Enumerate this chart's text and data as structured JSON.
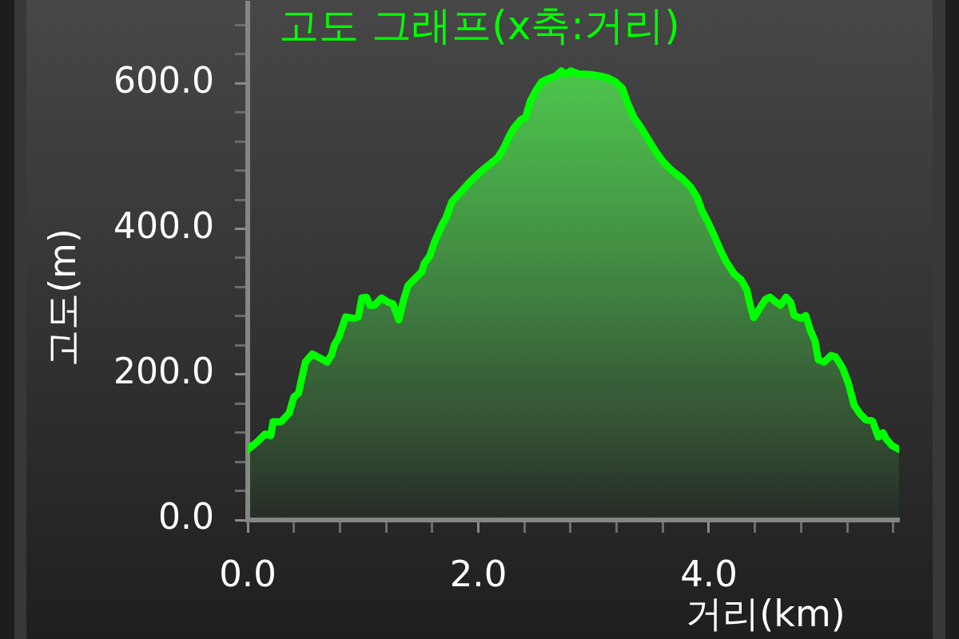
{
  "chart_data": {
    "type": "area",
    "title": "고도 그래프(x축:거리)",
    "xlabel": "거리(km)",
    "ylabel": "고도(m)",
    "color": "#00ff00",
    "marker": "none",
    "x": [
      0,
      0.08,
      0.15,
      0.2,
      0.22,
      0.29,
      0.36,
      0.4,
      0.44,
      0.5,
      0.56,
      0.62,
      0.69,
      0.73,
      0.75,
      0.79,
      0.85,
      0.92,
      0.96,
      0.99,
      1.03,
      1.06,
      1.1,
      1.16,
      1.22,
      1.26,
      1.31,
      1.35,
      1.39,
      1.44,
      1.51,
      1.53,
      1.58,
      1.62,
      1.69,
      1.72,
      1.77,
      1.85,
      1.93,
      2.03,
      2.1,
      2.17,
      2.22,
      2.27,
      2.31,
      2.37,
      2.41,
      2.45,
      2.5,
      2.55,
      2.62,
      2.67,
      2.72,
      2.76,
      2.8,
      2.87,
      2.97,
      3.06,
      3.13,
      3.19,
      3.25,
      3.3,
      3.35,
      3.4,
      3.47,
      3.54,
      3.61,
      3.68,
      3.77,
      3.84,
      3.9,
      3.94,
      3.99,
      4.04,
      4.1,
      4.15,
      4.22,
      4.28,
      4.33,
      4.36,
      4.39,
      4.43,
      4.49,
      4.53,
      4.57,
      4.62,
      4.67,
      4.71,
      4.74,
      4.8,
      4.84,
      4.88,
      4.92,
      4.95,
      5.0,
      5.06,
      5.1,
      5.16,
      5.21,
      5.26,
      5.31,
      5.36,
      5.42,
      5.47,
      5.51,
      5.54,
      5.59,
      5.65
    ],
    "values": [
      97,
      107,
      118,
      116,
      135,
      135,
      147,
      169,
      174,
      217,
      228,
      223,
      217,
      228,
      240,
      251,
      279,
      277,
      279,
      305,
      306,
      295,
      295,
      305,
      299,
      297,
      275,
      301,
      322,
      330,
      341,
      352,
      363,
      382,
      407,
      415,
      437,
      451,
      465,
      480,
      489,
      498,
      511,
      528,
      539,
      550,
      553,
      575,
      590,
      602,
      607,
      610,
      617,
      612,
      617,
      613,
      612,
      610,
      607,
      602,
      593,
      571,
      553,
      542,
      524,
      506,
      491,
      480,
      469,
      458,
      443,
      425,
      410,
      393,
      371,
      355,
      338,
      330,
      316,
      294,
      278,
      288,
      303,
      306,
      301,
      295,
      306,
      299,
      281,
      277,
      281,
      261,
      246,
      220,
      217,
      226,
      224,
      209,
      188,
      158,
      146,
      138,
      136,
      114,
      120,
      111,
      102,
      97
    ],
    "xlim": [
      0,
      5.65
    ],
    "ylim": [
      0,
      710
    ],
    "xticks": [
      {
        "value": 0,
        "label": "0.0"
      },
      {
        "value": 0.4,
        "label": null
      },
      {
        "value": 0.8,
        "label": null
      },
      {
        "value": 1.2,
        "label": null
      },
      {
        "value": 1.6,
        "label": null
      },
      {
        "value": 2,
        "label": "2.0"
      },
      {
        "value": 2.4,
        "label": null
      },
      {
        "value": 2.8,
        "label": null
      },
      {
        "value": 3.2,
        "label": null
      },
      {
        "value": 3.6,
        "label": null
      },
      {
        "value": 4,
        "label": "4.0"
      },
      {
        "value": 4.4,
        "label": null
      },
      {
        "value": 4.8,
        "label": null
      },
      {
        "value": 5.2,
        "label": null
      },
      {
        "value": 5.6,
        "label": null
      }
    ],
    "yticks": [
      {
        "value": 0,
        "label": "0.0"
      },
      {
        "value": 40,
        "label": null
      },
      {
        "value": 80,
        "label": null
      },
      {
        "value": 120,
        "label": null
      },
      {
        "value": 160,
        "label": null
      },
      {
        "value": 200,
        "label": "200.0"
      },
      {
        "value": 240,
        "label": null
      },
      {
        "value": 280,
        "label": null
      },
      {
        "value": 320,
        "label": null
      },
      {
        "value": 360,
        "label": null
      },
      {
        "value": 400,
        "label": "400.0"
      },
      {
        "value": 440,
        "label": null
      },
      {
        "value": 480,
        "label": null
      },
      {
        "value": 520,
        "label": null
      },
      {
        "value": 560,
        "label": null
      },
      {
        "value": 600,
        "label": "600.0"
      },
      {
        "value": 640,
        "label": null
      },
      {
        "value": 680,
        "label": null
      }
    ]
  }
}
